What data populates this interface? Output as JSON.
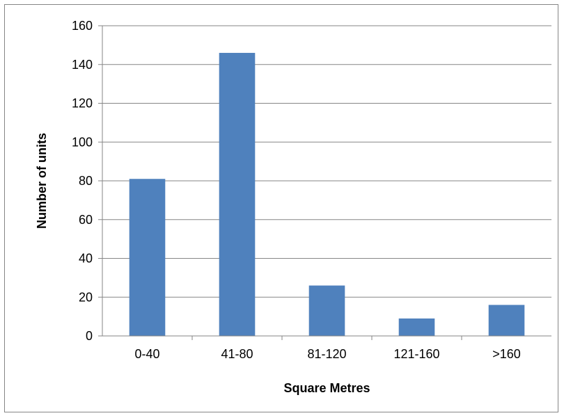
{
  "chart_data": {
    "type": "bar",
    "title": "",
    "xlabel": "Square Metres",
    "ylabel": "Number of units",
    "categories": [
      "0-40",
      "41-80",
      "81-120",
      "121-160",
      ">160"
    ],
    "values": [
      81,
      146,
      26,
      9,
      16
    ],
    "ylim": [
      0,
      160
    ],
    "yticks": [
      0,
      20,
      40,
      60,
      80,
      100,
      120,
      140,
      160
    ],
    "grid": true,
    "legend": "none",
    "bar_color": "#4F81BD",
    "grid_color": "#868686"
  }
}
